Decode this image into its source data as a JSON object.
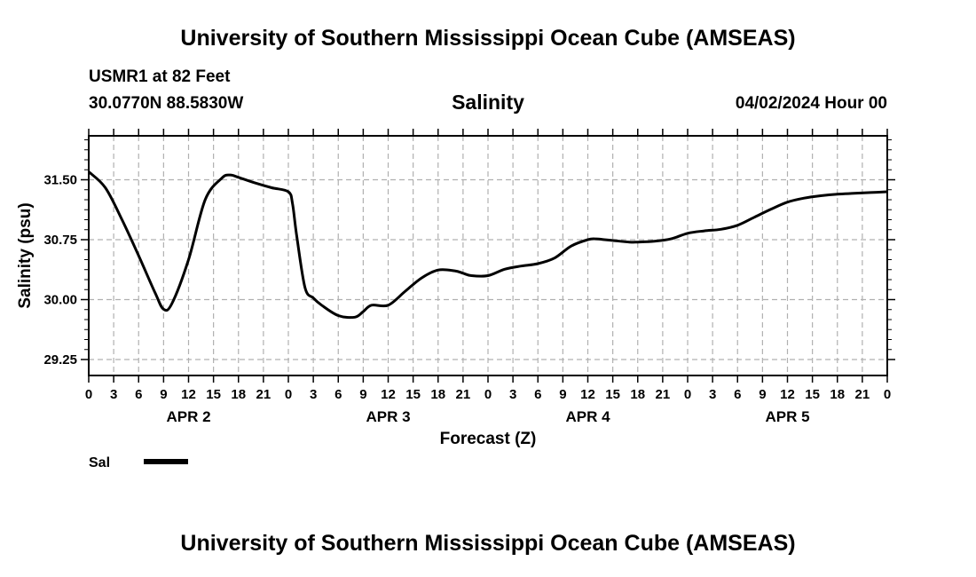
{
  "header": {
    "title": "University of Southern Mississippi Ocean Cube (AMSEAS)",
    "station": "USMR1 at 82 Feet",
    "coords": "30.0770N  88.5830W",
    "variable": "Salinity",
    "datetime": "04/02/2024 Hour 00"
  },
  "footer": {
    "title": "University of Southern Mississippi Ocean Cube (AMSEAS)"
  },
  "chart_data": {
    "type": "line",
    "title": "Salinity",
    "xlabel": "Forecast (Z)",
    "ylabel": "Salinity (psu)",
    "xlim": [
      0,
      96
    ],
    "ylim": [
      29.05,
      32.05
    ],
    "yticks": [
      29.25,
      30.0,
      30.75,
      31.5
    ],
    "ytick_labels": [
      "29.25",
      "30.00",
      "30.75",
      "31.50"
    ],
    "xticks": [
      0,
      3,
      6,
      9,
      12,
      15,
      18,
      21,
      24,
      27,
      30,
      33,
      36,
      39,
      42,
      45,
      48,
      51,
      54,
      57,
      60,
      63,
      66,
      69,
      72,
      75,
      78,
      81,
      84,
      87,
      90,
      93,
      96
    ],
    "xtick_labels": [
      "0",
      "3",
      "6",
      "9",
      "12",
      "15",
      "18",
      "21",
      "0",
      "3",
      "6",
      "9",
      "12",
      "15",
      "18",
      "21",
      "0",
      "3",
      "6",
      "9",
      "12",
      "15",
      "18",
      "21",
      "0",
      "3",
      "6",
      "9",
      "12",
      "15",
      "18",
      "21",
      "0"
    ],
    "day_labels": [
      {
        "label": "APR 2",
        "x": 12
      },
      {
        "label": "APR 3",
        "x": 36
      },
      {
        "label": "APR 4",
        "x": 60
      },
      {
        "label": "APR 5",
        "x": 84
      }
    ],
    "grid": true,
    "legend": {
      "label": "Sal",
      "placement": "bottom-left"
    },
    "series": [
      {
        "name": "Sal",
        "x": [
          0,
          2,
          4,
          6,
          8,
          9,
          10,
          12,
          14,
          16,
          17,
          18,
          20,
          22,
          24,
          24.5,
          25,
          26,
          27,
          28,
          30,
          32,
          33,
          34,
          36,
          38,
          40,
          42,
          44,
          45,
          46,
          48,
          50,
          52,
          54,
          56,
          58,
          60,
          61,
          62,
          63,
          65,
          66,
          68,
          70,
          72,
          74,
          76,
          78,
          80,
          82,
          84,
          86,
          88,
          90,
          92,
          94,
          96
        ],
        "values": [
          31.6,
          31.4,
          31.0,
          30.55,
          30.08,
          29.88,
          29.95,
          30.5,
          31.25,
          31.52,
          31.56,
          31.53,
          31.46,
          31.4,
          31.35,
          31.2,
          30.8,
          30.15,
          30.02,
          29.93,
          29.8,
          29.78,
          29.85,
          29.93,
          29.93,
          30.1,
          30.27,
          30.37,
          30.36,
          30.33,
          30.3,
          30.3,
          30.38,
          30.42,
          30.45,
          30.52,
          30.67,
          30.75,
          30.76,
          30.75,
          30.74,
          30.72,
          30.72,
          30.73,
          30.76,
          30.83,
          30.86,
          30.88,
          30.93,
          31.03,
          31.13,
          31.22,
          31.27,
          31.3,
          31.32,
          31.33,
          31.34,
          31.35
        ]
      }
    ]
  }
}
